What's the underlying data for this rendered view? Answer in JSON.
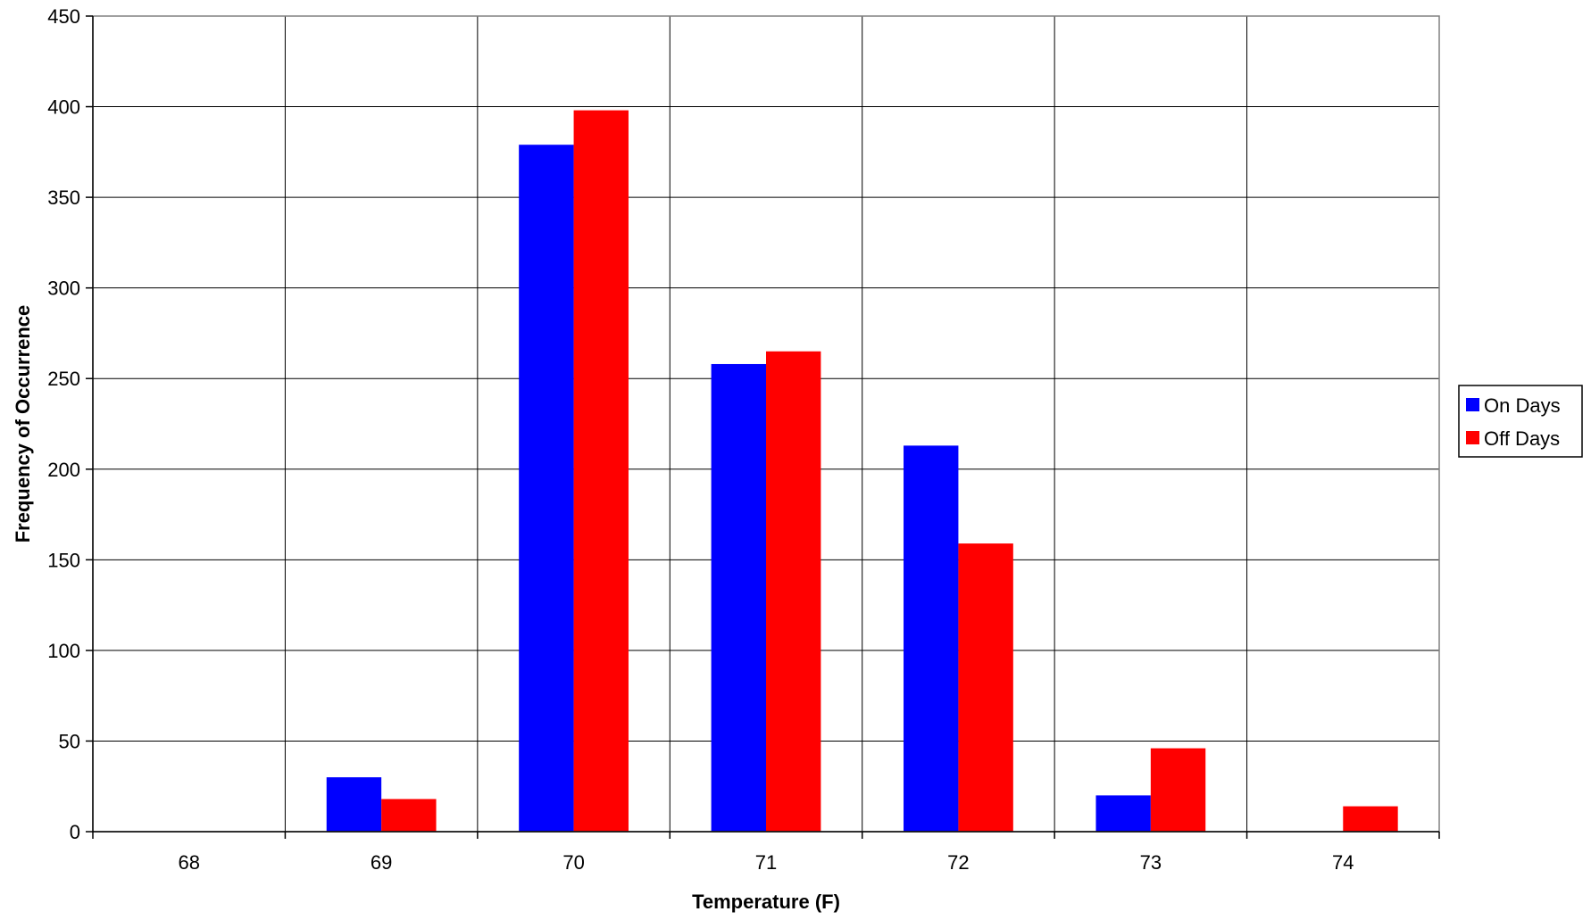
{
  "chart_data": {
    "type": "bar",
    "title": "",
    "xlabel": "Temperature (F)",
    "ylabel": "Frequency of Occurrence",
    "categories": [
      "68",
      "69",
      "70",
      "71",
      "72",
      "73",
      "74"
    ],
    "series": [
      {
        "name": "On Days",
        "color": "#0000ff",
        "values": [
          0,
          30,
          379,
          258,
          213,
          20,
          0
        ]
      },
      {
        "name": "Off Days",
        "color": "#ff0000",
        "values": [
          0,
          18,
          398,
          265,
          159,
          46,
          14
        ]
      }
    ],
    "ylim": [
      0,
      450
    ],
    "yticks": [
      "0",
      "50",
      "100",
      "150",
      "200",
      "250",
      "300",
      "350",
      "400",
      "450"
    ],
    "grid": true,
    "legend": "right"
  }
}
